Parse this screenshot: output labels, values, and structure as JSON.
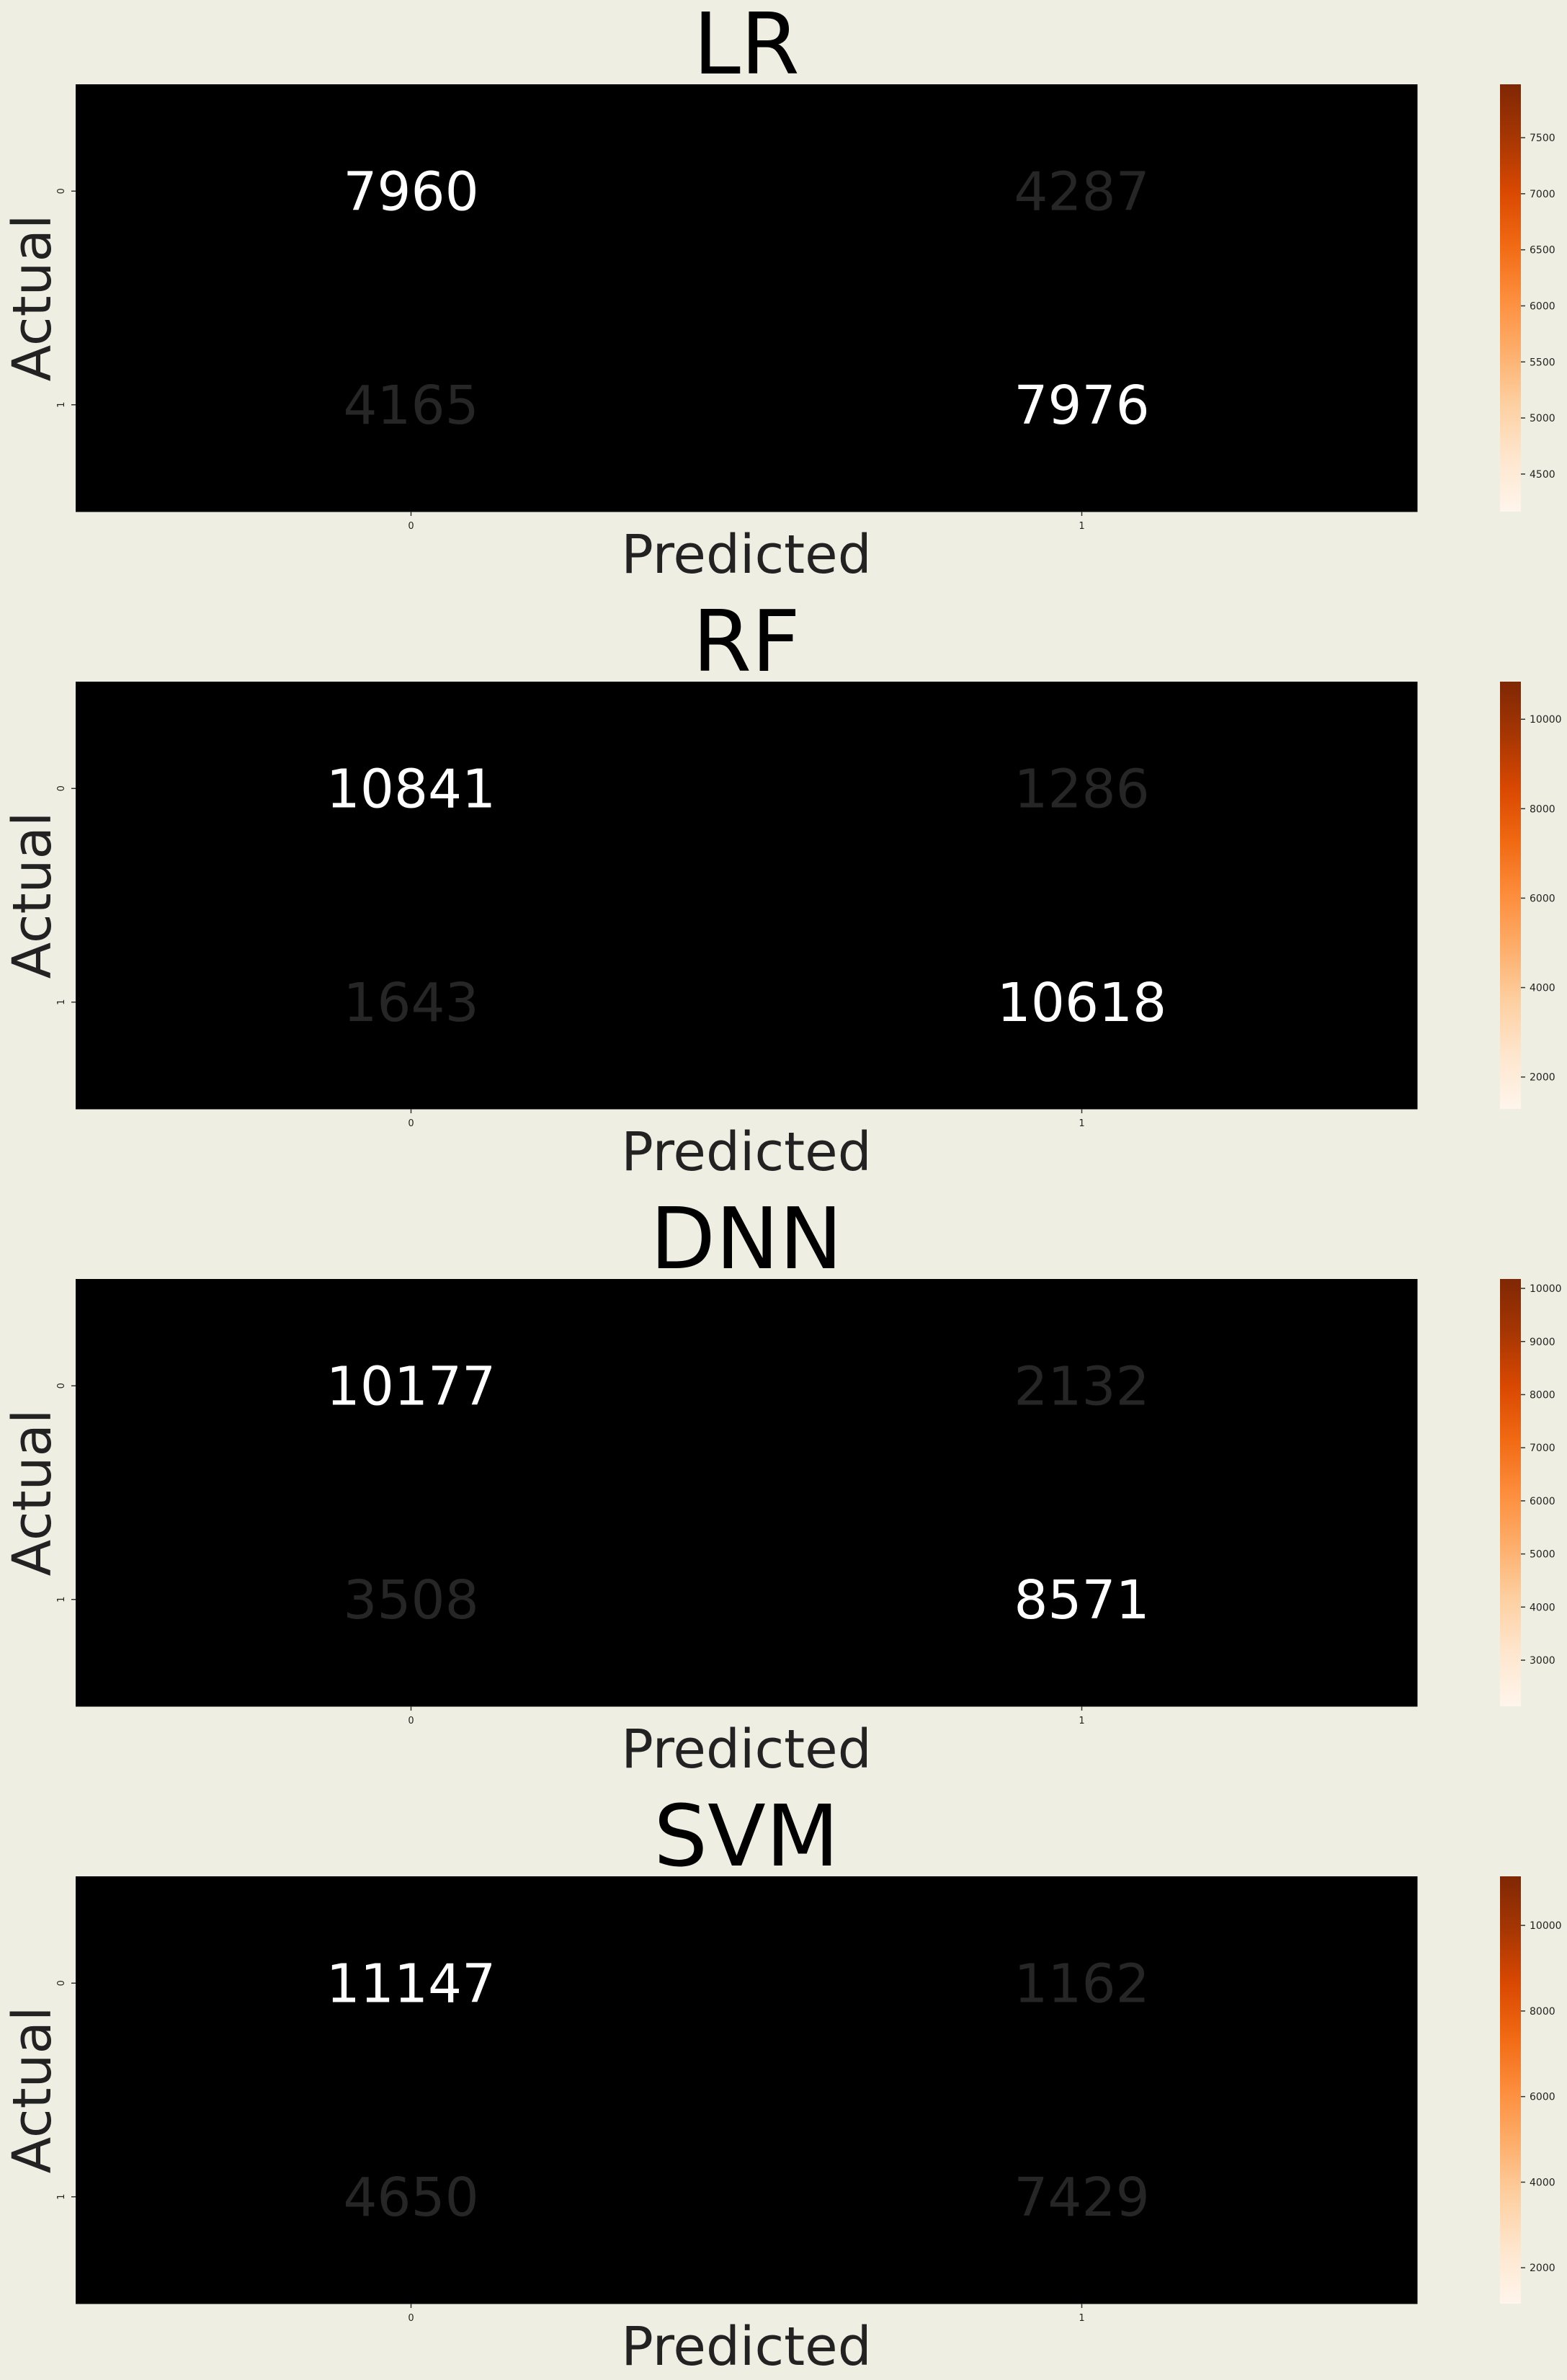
{
  "figure": {
    "background": "#efeee2"
  },
  "chart_data": [
    {
      "type": "heatmap",
      "title": "LR",
      "xlabel": "Predicted",
      "ylabel": "Actual",
      "x_categories": [
        "0",
        "1"
      ],
      "y_categories": [
        "0",
        "1"
      ],
      "values": [
        [
          7960,
          4287
        ],
        [
          4165,
          7976
        ]
      ],
      "colormap": "Oranges",
      "colorbar": {
        "range": [
          4165,
          7976
        ],
        "ticks": [
          4500,
          5000,
          5500,
          6000,
          6500,
          7000,
          7500
        ]
      }
    },
    {
      "type": "heatmap",
      "title": "RF",
      "xlabel": "Predicted",
      "ylabel": "Actual",
      "x_categories": [
        "0",
        "1"
      ],
      "y_categories": [
        "0",
        "1"
      ],
      "values": [
        [
          10841,
          1286
        ],
        [
          1643,
          10618
        ]
      ],
      "colormap": "Oranges",
      "colorbar": {
        "range": [
          1286,
          10841
        ],
        "ticks": [
          2000,
          4000,
          6000,
          8000,
          10000
        ]
      }
    },
    {
      "type": "heatmap",
      "title": "DNN",
      "xlabel": "Predicted",
      "ylabel": "Actual",
      "x_categories": [
        "0",
        "1"
      ],
      "y_categories": [
        "0",
        "1"
      ],
      "values": [
        [
          10177,
          2132
        ],
        [
          3508,
          8571
        ]
      ],
      "colormap": "Oranges",
      "colorbar": {
        "range": [
          2132,
          10177
        ],
        "ticks": [
          3000,
          4000,
          5000,
          6000,
          7000,
          8000,
          9000,
          10000
        ]
      }
    },
    {
      "type": "heatmap",
      "title": "SVM",
      "xlabel": "Predicted",
      "ylabel": "Actual",
      "x_categories": [
        "0",
        "1"
      ],
      "y_categories": [
        "0",
        "1"
      ],
      "values": [
        [
          11147,
          1162
        ],
        [
          4650,
          7429
        ]
      ],
      "colormap": "Oranges",
      "colorbar": {
        "range": [
          1162,
          11147
        ],
        "ticks": [
          2000,
          4000,
          6000,
          8000,
          10000
        ]
      }
    }
  ]
}
